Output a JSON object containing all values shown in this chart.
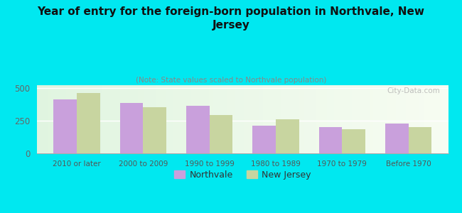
{
  "title": "Year of entry for the foreign-born population in Northvale, New\nJersey",
  "subtitle": "(Note: State values scaled to Northvale population)",
  "categories": [
    "2010 or later",
    "2000 to 2009",
    "1990 to 1999",
    "1980 to 1989",
    "1970 to 1979",
    "Before 1970"
  ],
  "northvale_values": [
    410,
    382,
    365,
    210,
    200,
    228
  ],
  "newjersey_values": [
    462,
    352,
    292,
    258,
    183,
    202
  ],
  "northvale_color": "#c9a0dc",
  "newjersey_color": "#c8d5a0",
  "background_color": "#00e8f0",
  "ylabel_values": [
    0,
    250,
    500
  ],
  "ylim": [
    0,
    520
  ],
  "bar_width": 0.35,
  "watermark": "City-Data.com",
  "legend_northvale": "Northvale",
  "legend_newjersey": "New Jersey"
}
